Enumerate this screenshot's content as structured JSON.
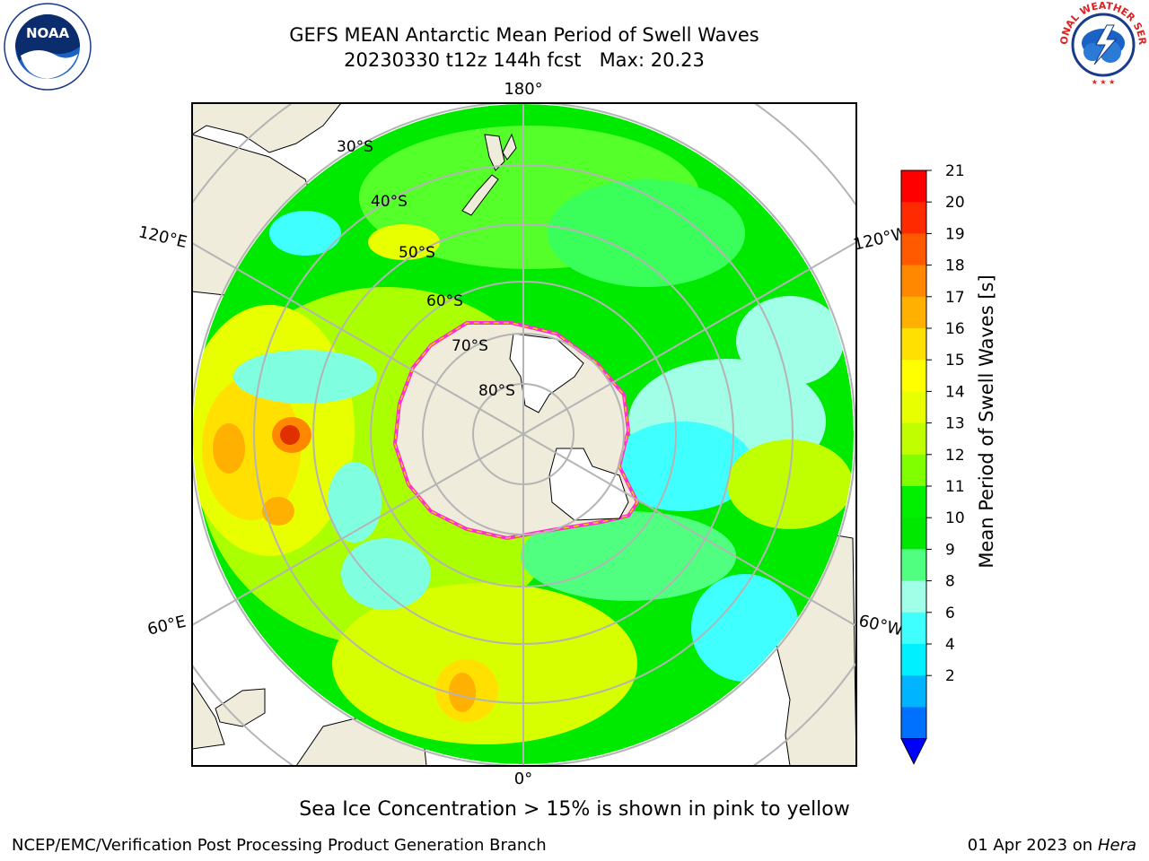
{
  "header": {
    "title_line1": "GEFS MEAN Antarctic Mean Period of Swell Waves",
    "run": "20230330 t12z 144h fcst",
    "max_label": "Max: 20.23"
  },
  "logos": {
    "left": "noaa-logo",
    "right": "national-weather-service-logo",
    "left_text": "NOAA",
    "right_text": "NATIONAL WEATHER SERVICE"
  },
  "map": {
    "projection": "south-polar-stereographic",
    "lon_labels": [
      "180°",
      "120°E",
      "120°W",
      "60°E",
      "60°W",
      "0°"
    ],
    "lat_labels": [
      "30°S",
      "40°S",
      "50°S",
      "60°S",
      "70°S",
      "80°S"
    ],
    "colors": {
      "land": "#efecdc",
      "ice_edge": "#ff30d0",
      "grid": "#b4b4b4"
    }
  },
  "colorbar": {
    "label": "Mean Period of Swell Waves [s]",
    "units": "s",
    "ticks": [
      "21",
      "20",
      "19",
      "18",
      "17",
      "16",
      "15",
      "14",
      "13",
      "12",
      "11",
      "10",
      "9",
      "8",
      "6",
      "4",
      "2"
    ],
    "colors": [
      "#ff0000",
      "#ff2a00",
      "#ff5a00",
      "#ff8800",
      "#ffb000",
      "#ffe000",
      "#ffff00",
      "#e8ff00",
      "#c0ff00",
      "#80ff00",
      "#00f000",
      "#00e800",
      "#50ff80",
      "#a0ffe6",
      "#40ffff",
      "#00f0ff",
      "#00b4ff",
      "#0070ff"
    ],
    "extend_color": "#0000ff"
  },
  "note": "Sea Ice Concentration > 15% is shown in pink to yellow",
  "footer": {
    "left": "NCEP/EMC/Verification Post Processing Product Generation Branch",
    "date": "01 Apr 2023 on",
    "machine": "Hera"
  }
}
